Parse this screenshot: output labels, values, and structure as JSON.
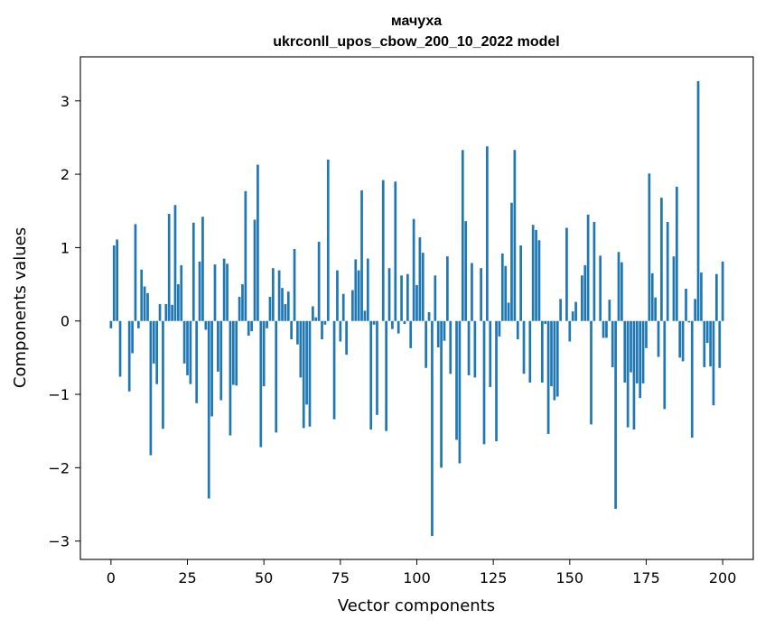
{
  "chart_data": {
    "type": "bar",
    "title": "мачуха",
    "subtitle": "ukrconll_upos_cbow_200_10_2022 model",
    "xlabel": "Vector components",
    "ylabel": "Components values",
    "xlim": [
      -10,
      210
    ],
    "ylim": [
      -3.25,
      3.6
    ],
    "xticks": [
      0,
      25,
      50,
      75,
      100,
      125,
      150,
      175,
      200
    ],
    "yticks": [
      -3,
      -2,
      -1,
      0,
      1,
      2,
      3
    ],
    "xtick_labels": [
      "0",
      "25",
      "50",
      "75",
      "100",
      "125",
      "150",
      "175",
      "200"
    ],
    "ytick_labels": [
      "−3",
      "−2",
      "−1",
      "0",
      "1",
      "2",
      "3"
    ],
    "grid": false,
    "legend": "none",
    "bar_color": "#1f77b4",
    "x_start": 0,
    "values": [
      -0.1,
      1.03,
      1.11,
      -0.76,
      0.0,
      0.0,
      -0.96,
      -0.44,
      1.32,
      -0.1,
      0.7,
      0.47,
      0.38,
      -1.83,
      -0.58,
      -0.86,
      0.23,
      -1.47,
      0.23,
      1.46,
      0.22,
      1.58,
      0.5,
      0.76,
      -0.58,
      -0.74,
      -0.86,
      1.34,
      -1.12,
      0.81,
      1.42,
      -0.12,
      -2.42,
      -1.3,
      0.77,
      -0.69,
      -1.08,
      0.85,
      0.78,
      -1.56,
      -0.87,
      -0.88,
      0.33,
      0.5,
      1.77,
      -0.2,
      -0.14,
      1.38,
      2.13,
      -1.72,
      -0.89,
      -0.1,
      0.33,
      0.72,
      -1.52,
      0.69,
      0.45,
      0.23,
      0.4,
      -0.25,
      0.98,
      -0.32,
      -0.77,
      -1.46,
      -1.14,
      -1.44,
      0.2,
      0.05,
      1.08,
      -0.25,
      -0.05,
      2.2,
      0.0,
      -1.34,
      0.69,
      -0.28,
      0.37,
      -0.46,
      0.0,
      0.42,
      0.84,
      0.69,
      1.78,
      0.14,
      0.85,
      -1.48,
      -0.05,
      -1.28,
      0.0,
      1.92,
      -1.5,
      0.72,
      -0.11,
      1.9,
      -0.17,
      0.62,
      -0.04,
      0.64,
      -0.37,
      1.39,
      0.49,
      1.14,
      0.93,
      -0.64,
      0.12,
      -2.93,
      0.62,
      -0.36,
      -2.0,
      -0.27,
      0.88,
      -0.72,
      0.0,
      -1.62,
      -1.94,
      2.33,
      1.36,
      -0.74,
      0.79,
      -0.77,
      0.0,
      0.72,
      -1.68,
      2.38,
      -0.9,
      0.0,
      -1.64,
      -0.21,
      0.92,
      0.75,
      0.25,
      1.61,
      2.33,
      -0.25,
      1.03,
      -0.72,
      0.0,
      -0.84,
      1.31,
      1.24,
      1.1,
      -0.84,
      -0.04,
      -1.54,
      -0.89,
      -1.08,
      -1.03,
      0.3,
      0.0,
      1.27,
      -0.28,
      0.13,
      0.26,
      0.0,
      0.62,
      0.76,
      1.45,
      -1.41,
      1.35,
      0.0,
      0.89,
      -0.23,
      -0.23,
      0.29,
      -0.63,
      -2.56,
      0.94,
      0.8,
      -0.84,
      -1.45,
      -0.7,
      -1.48,
      -0.85,
      -1.05,
      -0.85,
      -0.37,
      2.01,
      0.65,
      0.32,
      -0.49,
      1.68,
      -1.2,
      1.35,
      0.0,
      0.88,
      1.83,
      -0.5,
      -0.55,
      0.44,
      -0.02,
      -1.59,
      0.3,
      3.27,
      0.66,
      -0.63,
      -0.3,
      -0.62,
      -1.15,
      0.64,
      -0.64,
      0.81
    ]
  }
}
